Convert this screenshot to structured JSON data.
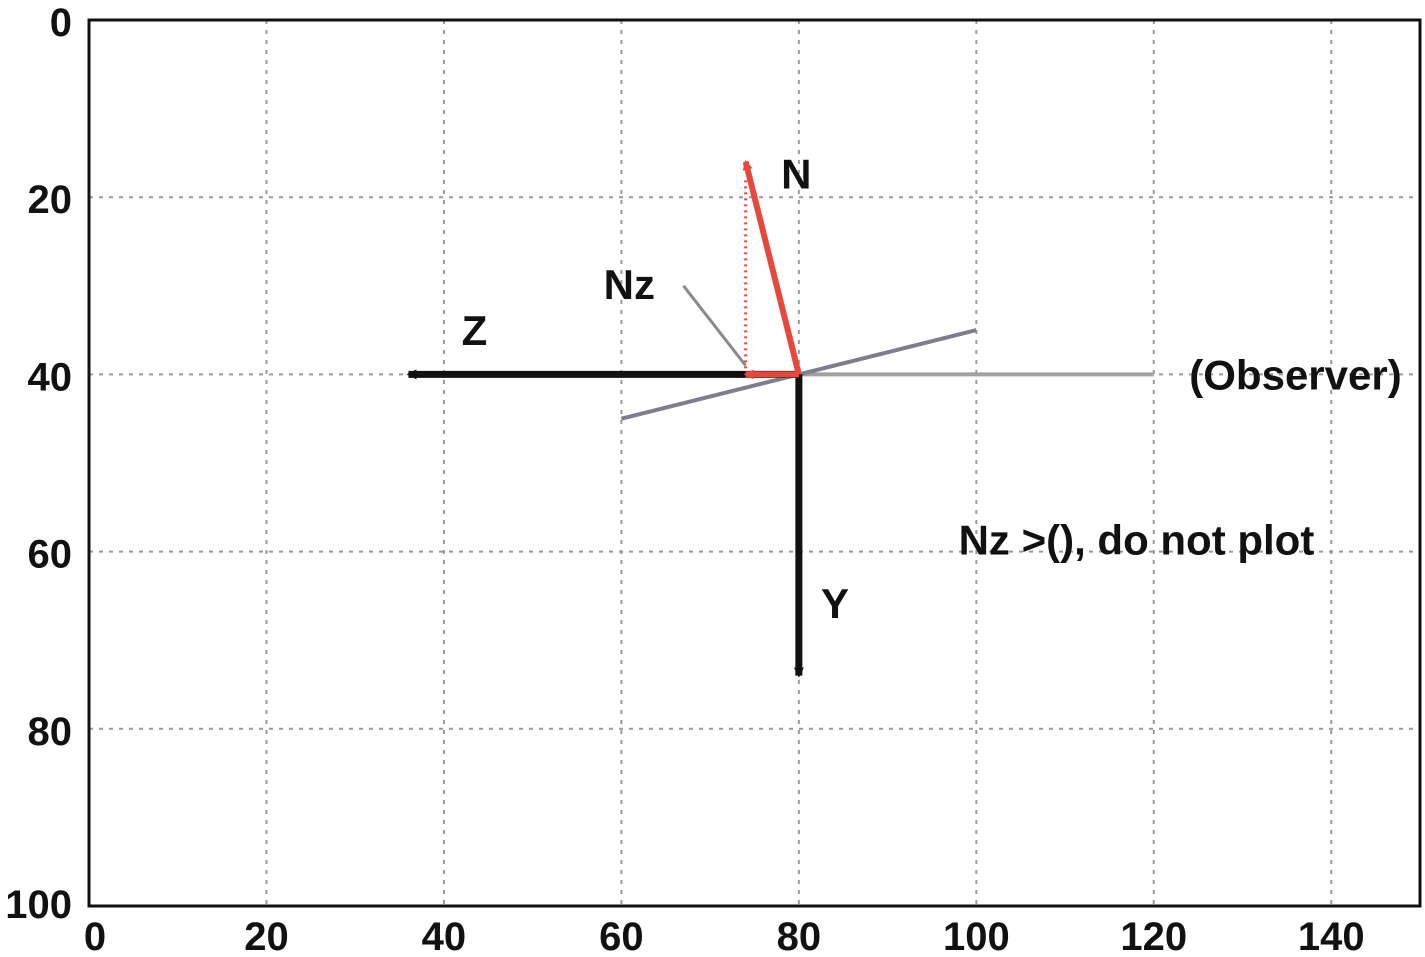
{
  "chart_data": {
    "type": "diagram",
    "xlim": [
      0,
      150
    ],
    "ylim": [
      0,
      100
    ],
    "y_inverted": true,
    "grid": true,
    "x_ticks": [
      0,
      20,
      40,
      60,
      80,
      100,
      120,
      140
    ],
    "y_ticks": [
      0,
      20,
      40,
      60,
      80,
      100
    ],
    "colors": {
      "axis_arrow": "#111111",
      "normal": "#e8473c",
      "plane": "#7d7d8c",
      "observer_line": "#a0a0a0"
    },
    "arrows": [
      {
        "name": "Z",
        "from": [
          80,
          40
        ],
        "to": [
          36,
          40
        ],
        "color": "#111111"
      },
      {
        "name": "Y",
        "from": [
          80,
          40
        ],
        "to": [
          80,
          74
        ],
        "color": "#111111"
      },
      {
        "name": "N",
        "from": [
          80,
          40
        ],
        "to": [
          74,
          16
        ],
        "color": "#e8473c"
      },
      {
        "name": "Nz",
        "from": [
          80,
          40
        ],
        "to": [
          74,
          40
        ],
        "color": "#e8473c"
      }
    ],
    "plane_line": {
      "from": [
        60,
        45
      ],
      "to": [
        100,
        35
      ]
    },
    "observer_line": {
      "from": [
        80,
        40
      ],
      "to": [
        120,
        40
      ]
    },
    "dotted_projection": {
      "from": [
        74,
        40
      ],
      "to": [
        74,
        18
      ]
    },
    "leader_line": {
      "from": [
        67,
        30
      ],
      "to": [
        74,
        39
      ]
    },
    "labels": [
      {
        "text": "N",
        "x": 78,
        "y": 19
      },
      {
        "text": "Nz",
        "x": 58,
        "y": 31.5
      },
      {
        "text": "Z",
        "x": 42,
        "y": 36.7
      },
      {
        "text": "Y",
        "x": 82.5,
        "y": 67.5
      },
      {
        "text": "(Observer)",
        "x": 124,
        "y": 41.7
      },
      {
        "text": "Nz >(), do not plot",
        "x": 98,
        "y": 60.3
      }
    ]
  }
}
